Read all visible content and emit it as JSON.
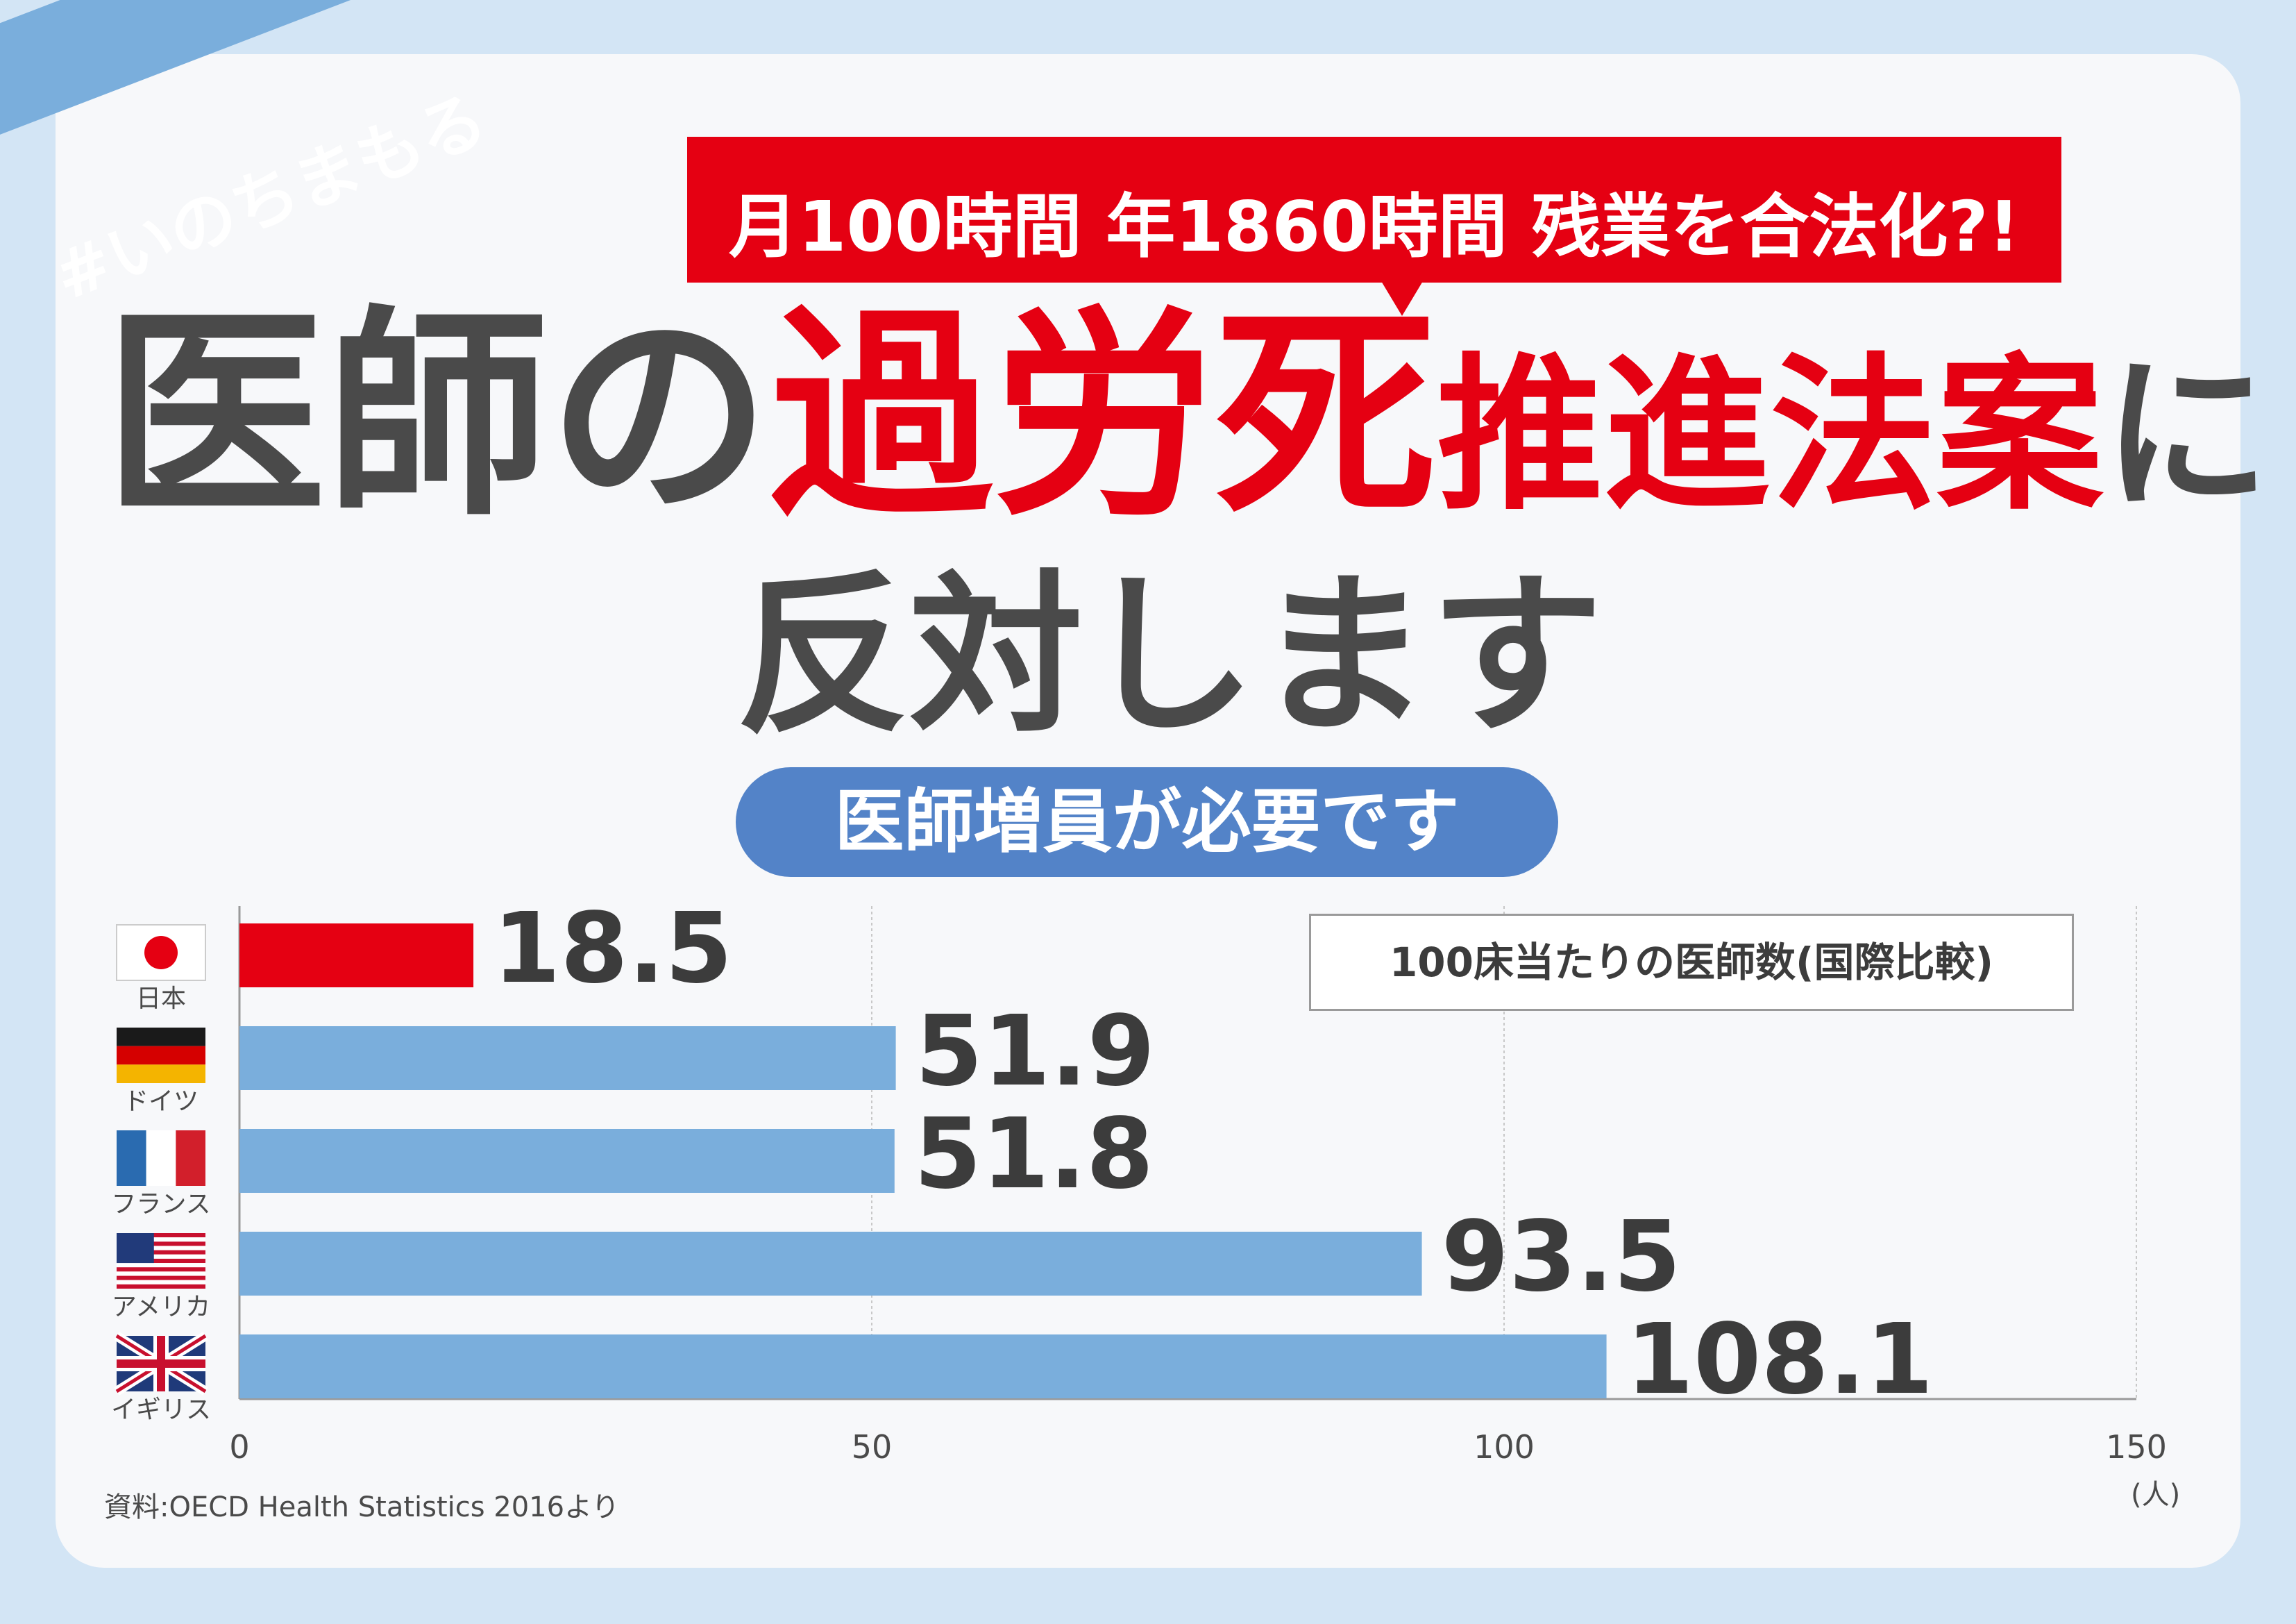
{
  "hashtag": "#いのちまもる",
  "banner": "月100時間 年1860時間 残業を合法化?!",
  "headline": {
    "part1": "医師の",
    "part2": "過労死",
    "part3": "推進法案",
    "part4": "に",
    "line2": "反対します"
  },
  "pill": "医師増員が必要です",
  "legend": "100床当たりの医師数(国際比較)",
  "source": "資料:OECD Health Statistics 2016より",
  "unit": "(人)",
  "colors": {
    "japan_bar": "#e50012",
    "other_bar": "#7aaedc",
    "pill": "#5383c8",
    "red": "#e50012"
  },
  "chart_data": {
    "type": "bar",
    "orientation": "horizontal",
    "categories": [
      "日本",
      "ドイツ",
      "フランス",
      "アメリカ",
      "イギリス"
    ],
    "flags": [
      "japan-flag-icon",
      "germany-flag-icon",
      "france-flag-icon",
      "usa-flag-icon",
      "uk-flag-icon"
    ],
    "values": [
      18.5,
      51.9,
      51.8,
      93.5,
      108.1
    ],
    "value_labels": [
      "18.5",
      "51.9",
      "51.8",
      "93.5",
      "108.1"
    ],
    "xlim": [
      0,
      150
    ],
    "xticks": [
      0,
      50,
      100,
      150
    ],
    "grid": true,
    "title": "100床当たりの医師数(国際比較)",
    "xlabel": "(人)",
    "ylabel": ""
  }
}
